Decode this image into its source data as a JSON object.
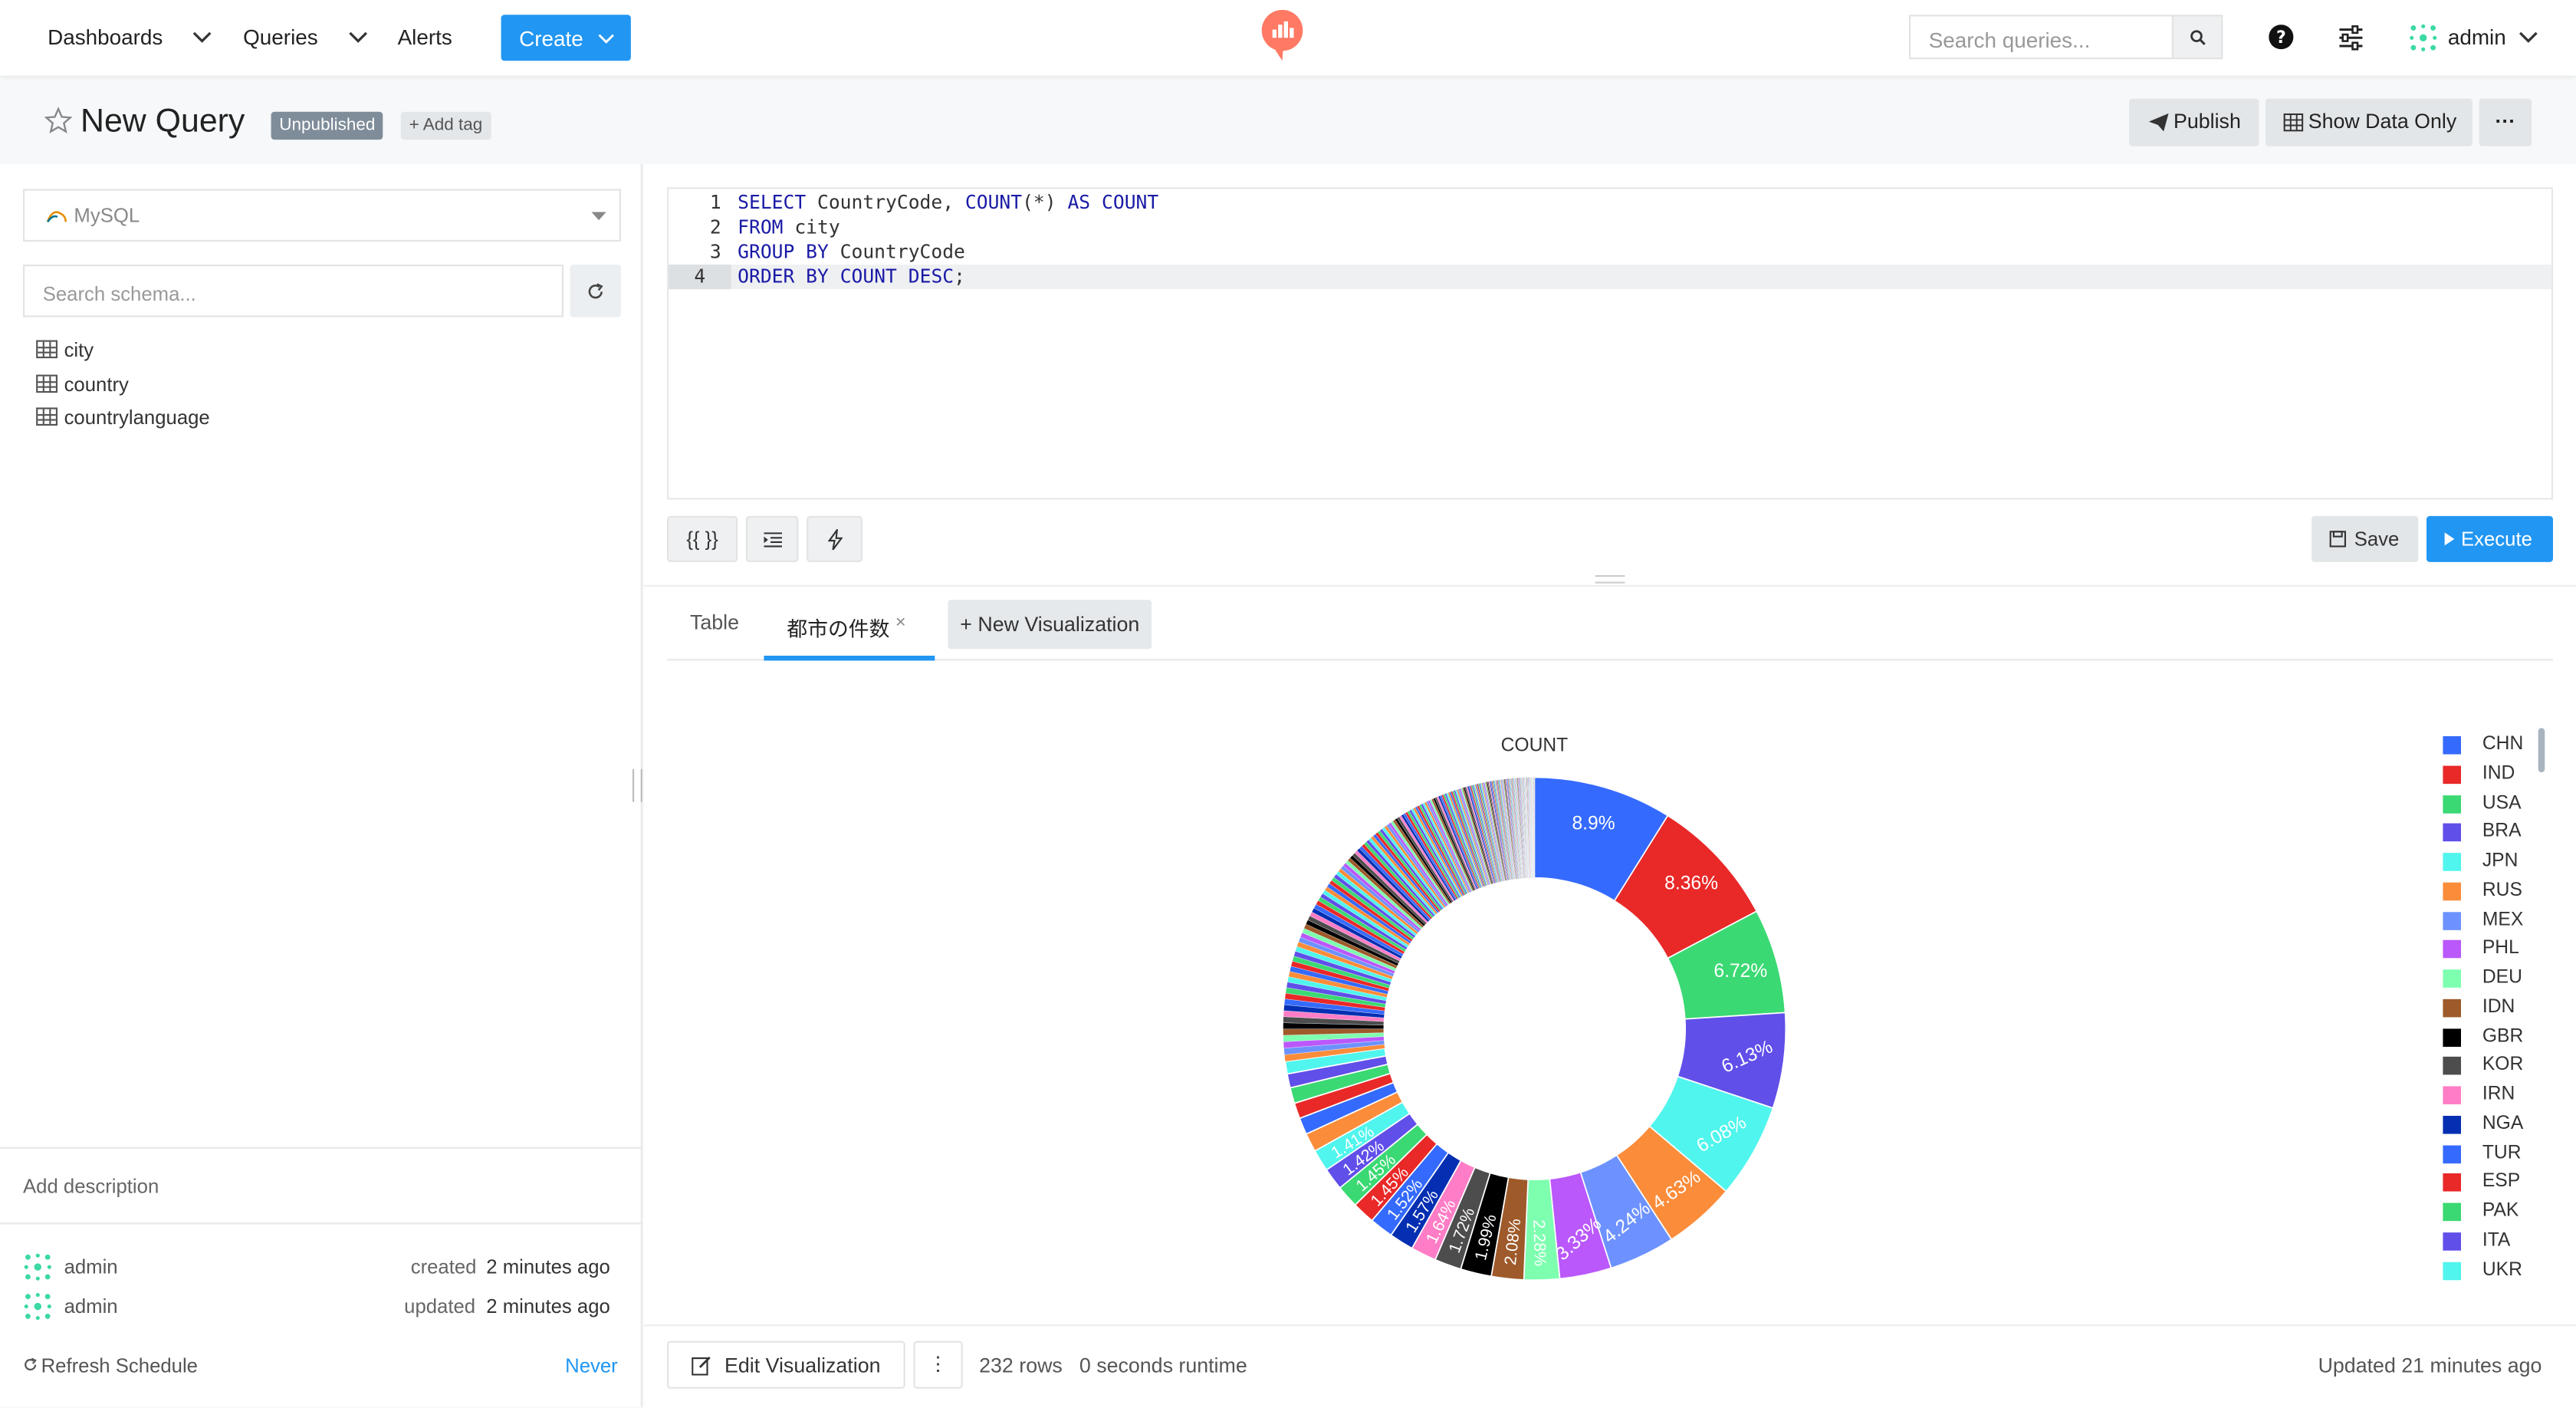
{
  "nav": {
    "dashboards": "Dashboards",
    "queries": "Queries",
    "alerts": "Alerts",
    "create": "Create",
    "search_placeholder": "Search queries...",
    "user": "admin"
  },
  "query": {
    "title": "New Query",
    "status_badge": "Unpublished",
    "add_tag": "+ Add tag",
    "publish": "Publish",
    "show_data_only": "Show Data Only",
    "more": "···"
  },
  "schema": {
    "datasource": "MySQL",
    "search_placeholder": "Search schema...",
    "tables": [
      "city",
      "country",
      "countrylanguage"
    ]
  },
  "sidebar_bottom": {
    "add_description": "Add description",
    "created_by": "admin",
    "created_text": "created",
    "created_time": "2 minutes ago",
    "updated_by": "admin",
    "updated_text": "updated",
    "updated_time": "2 minutes ago",
    "refresh_label": "Refresh Schedule",
    "refresh_value": "Never"
  },
  "editor": {
    "line_numbers": [
      "1",
      "2",
      "3",
      "4"
    ],
    "lines": [
      [
        {
          "t": "SELECT",
          "k": true
        },
        {
          "t": " CountryCode, ",
          "k": false
        },
        {
          "t": "COUNT",
          "k": true
        },
        {
          "t": "(*) ",
          "k": false
        },
        {
          "t": "AS",
          "k": true
        },
        {
          "t": " ",
          "k": false
        },
        {
          "t": "COUNT",
          "k": true
        }
      ],
      [
        {
          "t": "FROM",
          "k": true
        },
        {
          "t": " city",
          "k": false
        }
      ],
      [
        {
          "t": "GROUP BY",
          "k": true
        },
        {
          "t": " CountryCode",
          "k": false
        }
      ],
      [
        {
          "t": "ORDER BY",
          "k": true
        },
        {
          "t": " ",
          "k": false
        },
        {
          "t": "COUNT",
          "k": true
        },
        {
          "t": " ",
          "k": false
        },
        {
          "t": "DESC",
          "k": true
        },
        {
          "t": ";",
          "k": false
        }
      ]
    ],
    "btn_params": "{{ }}",
    "save": "Save",
    "execute": "Execute"
  },
  "tabs": {
    "table": "Table",
    "viz": "都市の件数",
    "new_viz": "+ New Visualization"
  },
  "footer": {
    "edit_viz": "Edit Visualization",
    "rows": "232 rows",
    "runtime": "0 seconds runtime",
    "updated": "Updated 21 minutes ago"
  },
  "colors": {
    "primary": "#2196f3",
    "badge": "#7f8c99",
    "logo": "#ff7964"
  },
  "chart_data": {
    "type": "pie",
    "title": "COUNT",
    "hole": 0.4,
    "legend_position": "right",
    "palette": [
      "#356aff",
      "#e92828",
      "#3bd973",
      "#604fe9",
      "#50f5ed",
      "#fb8c3a",
      "#6d92ff",
      "#ba58fb",
      "#7effb0",
      "#9e5a2a",
      "#000000",
      "#4d4d4d",
      "#ff7dc6",
      "#052fb2",
      "#356aff",
      "#e92828",
      "#3bd973",
      "#604fe9",
      "#50f5ed",
      "#fb8c3a"
    ],
    "labeled_values": [
      {
        "name": "CHN",
        "pct": 8.9
      },
      {
        "name": "IND",
        "pct": 8.36
      },
      {
        "name": "USA",
        "pct": 6.72
      },
      {
        "name": "BRA",
        "pct": 6.13
      },
      {
        "name": "JPN",
        "pct": 6.08
      },
      {
        "name": "RUS",
        "pct": 4.63
      },
      {
        "name": "MEX",
        "pct": 4.24
      },
      {
        "name": "PHL",
        "pct": 3.33
      },
      {
        "name": "DEU",
        "pct": 2.28
      },
      {
        "name": "IDN",
        "pct": 2.08
      },
      {
        "name": "GBR",
        "pct": 1.99
      },
      {
        "name": "KOR",
        "pct": 1.72
      },
      {
        "name": "IRN",
        "pct": 1.64
      },
      {
        "name": "NGA",
        "pct": 1.57
      },
      {
        "name": "TUR",
        "pct": 1.52
      },
      {
        "name": "ESP",
        "pct": 1.45
      },
      {
        "name": "PAK",
        "pct": 1.45
      },
      {
        "name": "ITA",
        "pct": 1.42
      },
      {
        "name": "UKR",
        "pct": 1.41
      },
      {
        "name": "",
        "pct": 1.2
      },
      {
        "name": "",
        "pct": 1.08
      },
      {
        "name": "",
        "pct": 1.01
      },
      {
        "name": "",
        "pct": 1.01
      },
      {
        "name": "",
        "pct": 0.901
      },
      {
        "name": "",
        "pct": 0.8
      }
    ],
    "legend_visible": [
      "CHN",
      "IND",
      "USA",
      "BRA",
      "JPN",
      "RUS",
      "MEX",
      "PHL",
      "DEU",
      "IDN",
      "GBR",
      "KOR",
      "IRN",
      "NGA",
      "TUR",
      "ESP",
      "PAK",
      "ITA",
      "UKR"
    ],
    "total_slices": 232
  }
}
